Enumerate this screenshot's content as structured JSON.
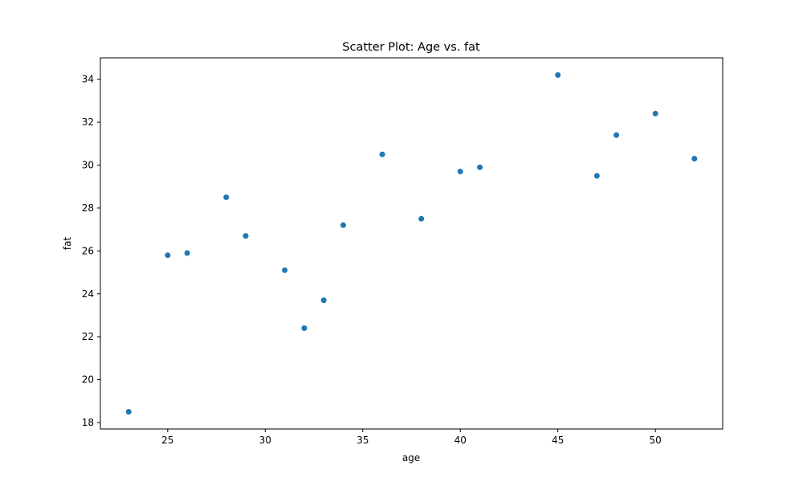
{
  "chart_data": {
    "type": "scatter",
    "title": "Scatter Plot: Age vs. fat",
    "xlabel": "age",
    "ylabel": "fat",
    "xlim": [
      21.55,
      53.45
    ],
    "ylim": [
      17.7,
      35.0
    ],
    "xticks": [
      25,
      30,
      35,
      40,
      45,
      50
    ],
    "yticks": [
      18,
      20,
      22,
      24,
      26,
      28,
      30,
      32,
      34
    ],
    "grid": false,
    "marker_color": "#1f77b4",
    "series": [
      {
        "x": [
          23,
          25,
          26,
          28,
          29,
          31,
          32,
          33,
          34,
          36,
          38,
          40,
          41,
          45,
          47,
          48,
          50,
          52
        ],
        "y": [
          18.5,
          25.8,
          25.9,
          28.5,
          26.7,
          25.1,
          22.4,
          23.7,
          27.2,
          30.5,
          27.5,
          29.7,
          29.9,
          34.2,
          29.5,
          31.4,
          32.4,
          30.3
        ]
      }
    ]
  }
}
